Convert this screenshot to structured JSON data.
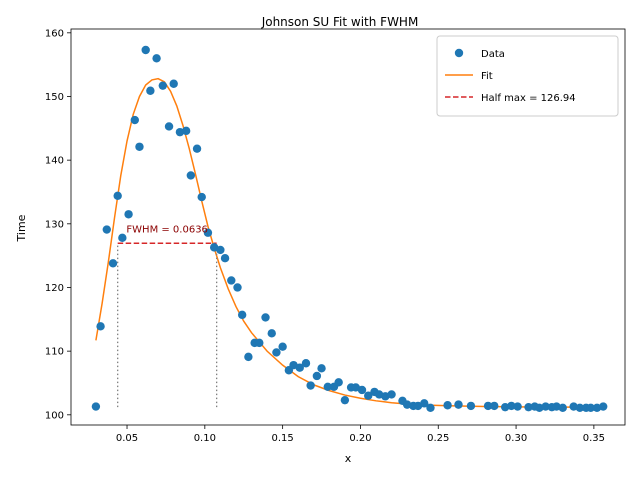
{
  "chart_data": {
    "type": "scatter",
    "title": "Johnson SU Fit with FWHM",
    "xlabel": "x",
    "ylabel": "Time",
    "xlim": [
      0.014,
      0.37
    ],
    "ylim": [
      98.4,
      160.6
    ],
    "x_ticks": [
      0.05,
      0.1,
      0.15,
      0.2,
      0.25,
      0.3,
      0.35
    ],
    "x_tick_labels": [
      "0.05",
      "0.10",
      "0.15",
      "0.20",
      "0.25",
      "0.30",
      "0.35"
    ],
    "y_ticks": [
      100,
      110,
      120,
      130,
      140,
      150,
      160
    ],
    "y_tick_labels": [
      "100",
      "110",
      "120",
      "130",
      "140",
      "150",
      "160"
    ],
    "grid": false,
    "legend_position": "top-right",
    "colors": {
      "data": "#1f77b4",
      "fit": "#ff7f0e",
      "half_max": "#d62728",
      "vline": "#808080",
      "annotation": "#8b0000"
    },
    "series": [
      {
        "name": "Data",
        "kind": "points",
        "points": [
          [
            0.03,
            101.3
          ],
          [
            0.033,
            113.9
          ],
          [
            0.037,
            129.1
          ],
          [
            0.041,
            123.8
          ],
          [
            0.044,
            134.4
          ],
          [
            0.047,
            127.8
          ],
          [
            0.051,
            131.5
          ],
          [
            0.055,
            146.3
          ],
          [
            0.058,
            142.1
          ],
          [
            0.062,
            157.3
          ],
          [
            0.065,
            150.9
          ],
          [
            0.069,
            156.0
          ],
          [
            0.073,
            151.7
          ],
          [
            0.077,
            145.3
          ],
          [
            0.08,
            152.0
          ],
          [
            0.084,
            144.4
          ],
          [
            0.088,
            144.6
          ],
          [
            0.091,
            137.6
          ],
          [
            0.095,
            141.8
          ],
          [
            0.098,
            134.2
          ],
          [
            0.102,
            128.6
          ],
          [
            0.106,
            126.3
          ],
          [
            0.11,
            125.9
          ],
          [
            0.113,
            124.6
          ],
          [
            0.117,
            121.1
          ],
          [
            0.121,
            120.0
          ],
          [
            0.124,
            115.7
          ],
          [
            0.128,
            109.1
          ],
          [
            0.132,
            111.3
          ],
          [
            0.135,
            111.3
          ],
          [
            0.139,
            115.3
          ],
          [
            0.143,
            112.8
          ],
          [
            0.146,
            109.8
          ],
          [
            0.15,
            110.7
          ],
          [
            0.154,
            107.0
          ],
          [
            0.157,
            107.8
          ],
          [
            0.161,
            107.4
          ],
          [
            0.165,
            108.1
          ],
          [
            0.168,
            104.6
          ],
          [
            0.172,
            106.1
          ],
          [
            0.175,
            107.3
          ],
          [
            0.179,
            104.4
          ],
          [
            0.183,
            104.4
          ],
          [
            0.186,
            105.1
          ],
          [
            0.19,
            102.3
          ],
          [
            0.194,
            104.3
          ],
          [
            0.197,
            104.3
          ],
          [
            0.201,
            103.9
          ],
          [
            0.205,
            103.0
          ],
          [
            0.209,
            103.6
          ],
          [
            0.212,
            103.2
          ],
          [
            0.216,
            102.9
          ],
          [
            0.22,
            103.2
          ],
          [
            0.227,
            102.2
          ],
          [
            0.23,
            101.6
          ],
          [
            0.234,
            101.4
          ],
          [
            0.237,
            101.4
          ],
          [
            0.241,
            101.8
          ],
          [
            0.245,
            101.1
          ],
          [
            0.256,
            101.5
          ],
          [
            0.263,
            101.6
          ],
          [
            0.271,
            101.4
          ],
          [
            0.282,
            101.4
          ],
          [
            0.286,
            101.4
          ],
          [
            0.293,
            101.2
          ],
          [
            0.297,
            101.4
          ],
          [
            0.301,
            101.3
          ],
          [
            0.308,
            101.2
          ],
          [
            0.312,
            101.3
          ],
          [
            0.315,
            101.1
          ],
          [
            0.319,
            101.3
          ],
          [
            0.323,
            101.2
          ],
          [
            0.326,
            101.3
          ],
          [
            0.33,
            101.1
          ],
          [
            0.337,
            101.3
          ],
          [
            0.341,
            101.1
          ],
          [
            0.345,
            101.1
          ],
          [
            0.348,
            101.1
          ],
          [
            0.352,
            101.1
          ],
          [
            0.356,
            101.3
          ]
        ]
      },
      {
        "name": "Fit",
        "kind": "line",
        "points": [
          [
            0.03,
            111.7
          ],
          [
            0.034,
            117.5
          ],
          [
            0.038,
            124.0
          ],
          [
            0.042,
            131.0
          ],
          [
            0.046,
            137.6
          ],
          [
            0.05,
            143.0
          ],
          [
            0.054,
            147.2
          ],
          [
            0.058,
            150.0
          ],
          [
            0.062,
            151.8
          ],
          [
            0.066,
            152.6
          ],
          [
            0.07,
            152.8
          ],
          [
            0.074,
            152.3
          ],
          [
            0.078,
            150.8
          ],
          [
            0.082,
            148.5
          ],
          [
            0.086,
            145.4
          ],
          [
            0.09,
            141.8
          ],
          [
            0.094,
            137.8
          ],
          [
            0.098,
            133.6
          ],
          [
            0.102,
            129.6
          ],
          [
            0.106,
            126.2
          ],
          [
            0.11,
            123.1
          ],
          [
            0.115,
            119.8
          ],
          [
            0.12,
            117.0
          ],
          [
            0.125,
            114.7
          ],
          [
            0.13,
            112.9
          ],
          [
            0.14,
            110.0
          ],
          [
            0.15,
            107.8
          ],
          [
            0.16,
            106.0
          ],
          [
            0.17,
            104.7
          ],
          [
            0.18,
            103.8
          ],
          [
            0.19,
            103.1
          ],
          [
            0.2,
            102.6
          ],
          [
            0.21,
            102.2
          ],
          [
            0.22,
            101.9
          ],
          [
            0.23,
            101.7
          ],
          [
            0.24,
            101.55
          ],
          [
            0.26,
            101.4
          ],
          [
            0.28,
            101.3
          ],
          [
            0.3,
            101.25
          ],
          [
            0.32,
            101.2
          ],
          [
            0.34,
            101.2
          ],
          [
            0.356,
            101.2
          ]
        ]
      },
      {
        "name": "Half max = 126.94",
        "kind": "hline",
        "y": 126.94,
        "x_range": [
          0.044,
          0.1076
        ]
      }
    ],
    "vlines": [
      {
        "x": 0.044,
        "y_range": [
          101.2,
          126.94
        ]
      },
      {
        "x": 0.1076,
        "y_range": [
          101.2,
          126.94
        ]
      }
    ],
    "annotations": [
      {
        "text": "FWHM = 0.0636",
        "x": 0.0758,
        "y": 128.6
      }
    ]
  }
}
